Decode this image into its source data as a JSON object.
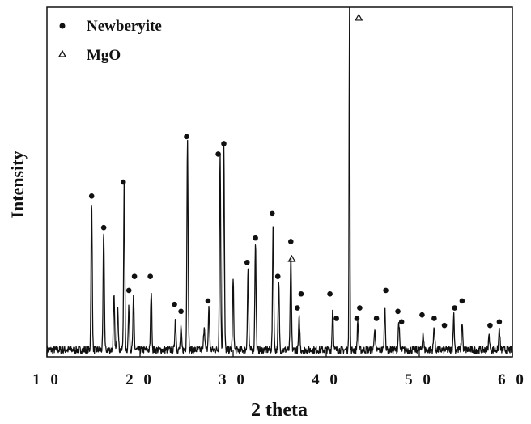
{
  "chart_data": {
    "type": "line",
    "xlabel": "2 theta",
    "ylabel": "Intensity",
    "xlim": [
      10,
      60
    ],
    "x_ticks": [
      "1 0",
      "2 0",
      "3 0",
      "4 0",
      "5 0",
      "6 0"
    ],
    "x_tick_values": [
      10,
      20,
      30,
      40,
      50,
      60
    ],
    "grid": false,
    "legend": {
      "placement": "top-left",
      "entries": [
        {
          "marker": "filled-circle",
          "label": "Newberyite"
        },
        {
          "marker": "open-triangle",
          "label": "MgO"
        }
      ]
    },
    "colors": {
      "line": "#111111",
      "marker": "#111111"
    },
    "series": [
      {
        "name": "",
        "baseline": 0.02,
        "peaks": [
          {
            "x": 14.8,
            "height": 0.42
          },
          {
            "x": 16.1,
            "height": 0.34
          },
          {
            "x": 17.2,
            "height": 0.15
          },
          {
            "x": 17.6,
            "height": 0.13
          },
          {
            "x": 18.3,
            "height": 0.48
          },
          {
            "x": 18.8,
            "height": 0.12
          },
          {
            "x": 19.3,
            "height": 0.15
          },
          {
            "x": 21.2,
            "height": 0.17
          },
          {
            "x": 23.8,
            "height": 0.09
          },
          {
            "x": 24.4,
            "height": 0.06
          },
          {
            "x": 25.1,
            "height": 0.6
          },
          {
            "x": 26.9,
            "height": 0.07
          },
          {
            "x": 27.4,
            "height": 0.12
          },
          {
            "x": 28.6,
            "height": 0.56
          },
          {
            "x": 29.0,
            "height": 0.59
          },
          {
            "x": 30.0,
            "height": 0.2
          },
          {
            "x": 31.6,
            "height": 0.23
          },
          {
            "x": 32.4,
            "height": 0.31
          },
          {
            "x": 34.3,
            "height": 0.37
          },
          {
            "x": 34.9,
            "height": 0.19
          },
          {
            "x": 36.2,
            "height": 0.26
          },
          {
            "x": 37.1,
            "height": 0.09
          },
          {
            "x": 40.7,
            "height": 0.12
          },
          {
            "x": 42.5,
            "height": 0.99
          },
          {
            "x": 43.4,
            "height": 0.08
          },
          {
            "x": 45.2,
            "height": 0.06
          },
          {
            "x": 46.3,
            "height": 0.12
          },
          {
            "x": 47.8,
            "height": 0.08
          },
          {
            "x": 50.4,
            "height": 0.05
          },
          {
            "x": 51.6,
            "height": 0.07
          },
          {
            "x": 53.7,
            "height": 0.1
          },
          {
            "x": 54.6,
            "height": 0.08
          },
          {
            "x": 57.5,
            "height": 0.04
          },
          {
            "x": 58.6,
            "height": 0.06
          }
        ]
      }
    ],
    "markers": [
      {
        "type": "newberyite",
        "x": 14.8,
        "y": 0.46
      },
      {
        "type": "newberyite",
        "x": 16.1,
        "y": 0.37
      },
      {
        "type": "newberyite",
        "x": 18.2,
        "y": 0.5
      },
      {
        "type": "newberyite",
        "x": 18.8,
        "y": 0.19
      },
      {
        "type": "newberyite",
        "x": 19.4,
        "y": 0.23
      },
      {
        "type": "newberyite",
        "x": 21.1,
        "y": 0.23
      },
      {
        "type": "newberyite",
        "x": 23.7,
        "y": 0.15
      },
      {
        "type": "newberyite",
        "x": 24.4,
        "y": 0.13
      },
      {
        "type": "newberyite",
        "x": 25.0,
        "y": 0.63
      },
      {
        "type": "newberyite",
        "x": 27.3,
        "y": 0.16
      },
      {
        "type": "newberyite",
        "x": 28.4,
        "y": 0.58
      },
      {
        "type": "newberyite",
        "x": 29.0,
        "y": 0.61
      },
      {
        "type": "newberyite",
        "x": 31.5,
        "y": 0.27
      },
      {
        "type": "newberyite",
        "x": 32.4,
        "y": 0.34
      },
      {
        "type": "newberyite",
        "x": 34.2,
        "y": 0.41
      },
      {
        "type": "newberyite",
        "x": 34.8,
        "y": 0.23
      },
      {
        "type": "newberyite",
        "x": 36.2,
        "y": 0.33
      },
      {
        "type": "newberyite",
        "x": 37.3,
        "y": 0.18
      },
      {
        "type": "newberyite",
        "x": 36.9,
        "y": 0.14
      },
      {
        "type": "newberyite",
        "x": 40.4,
        "y": 0.18
      },
      {
        "type": "newberyite",
        "x": 41.1,
        "y": 0.11
      },
      {
        "type": "newberyite",
        "x": 43.3,
        "y": 0.11
      },
      {
        "type": "newberyite",
        "x": 43.6,
        "y": 0.14
      },
      {
        "type": "newberyite",
        "x": 45.4,
        "y": 0.11
      },
      {
        "type": "newberyite",
        "x": 46.4,
        "y": 0.19
      },
      {
        "type": "newberyite",
        "x": 47.7,
        "y": 0.13
      },
      {
        "type": "newberyite",
        "x": 48.1,
        "y": 0.1
      },
      {
        "type": "newberyite",
        "x": 50.3,
        "y": 0.12
      },
      {
        "type": "newberyite",
        "x": 51.6,
        "y": 0.11
      },
      {
        "type": "newberyite",
        "x": 52.7,
        "y": 0.09
      },
      {
        "type": "newberyite",
        "x": 53.8,
        "y": 0.14
      },
      {
        "type": "newberyite",
        "x": 54.6,
        "y": 0.16
      },
      {
        "type": "newberyite",
        "x": 57.6,
        "y": 0.09
      },
      {
        "type": "newberyite",
        "x": 58.6,
        "y": 0.1
      },
      {
        "type": "mgo",
        "x": 36.3,
        "y": 0.28
      },
      {
        "type": "mgo",
        "x": 43.5,
        "y": 0.97
      }
    ]
  }
}
